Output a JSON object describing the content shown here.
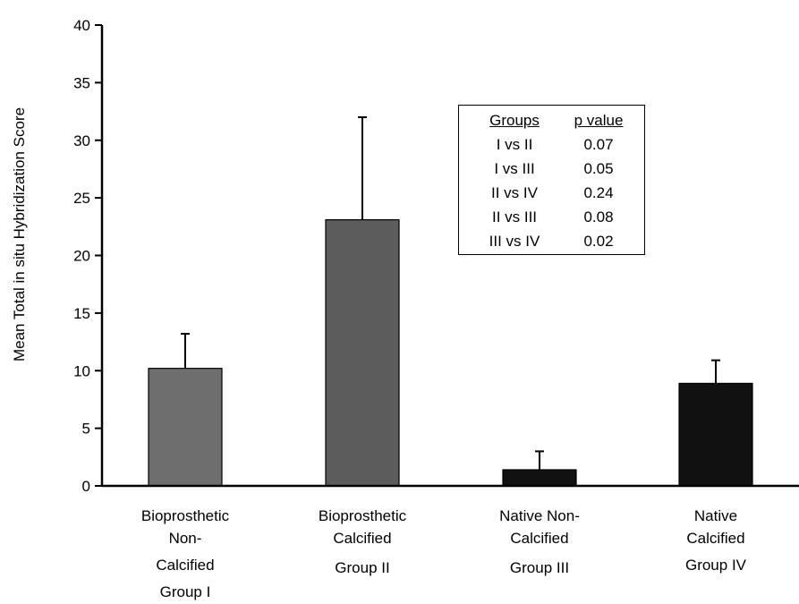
{
  "chart_data": {
    "type": "bar",
    "ylabel": "Mean Total in situ Hybridization Score",
    "xlabel": "",
    "title": "",
    "ylim": [
      0,
      40
    ],
    "yticks": [
      0,
      5,
      10,
      15,
      20,
      25,
      30,
      35,
      40
    ],
    "categories": [
      [
        "Bioprosthetic",
        "Non-",
        "Calcified",
        "Group I"
      ],
      [
        "Bioprosthetic",
        "Calcified",
        "Group II"
      ],
      [
        "Native Non-",
        "Calcified",
        "Group III"
      ],
      [
        "Native",
        "Calcified",
        "Group IV"
      ]
    ],
    "values": [
      10.2,
      23.1,
      1.4,
      8.9
    ],
    "error_upper": [
      13.2,
      32.0,
      3.0,
      10.9
    ],
    "bar_colors": [
      "#6e6e6e",
      "#5c5c5c",
      "#111111",
      "#111111"
    ],
    "grid": false,
    "legend_table": {
      "headers": [
        "Groups",
        "p value"
      ],
      "rows": [
        [
          "I vs II",
          "0.07"
        ],
        [
          "I vs III",
          "0.05"
        ],
        [
          "II vs IV",
          "0.24"
        ],
        [
          "II vs III",
          "0.08"
        ],
        [
          "III vs IV",
          "0.02"
        ]
      ]
    }
  }
}
